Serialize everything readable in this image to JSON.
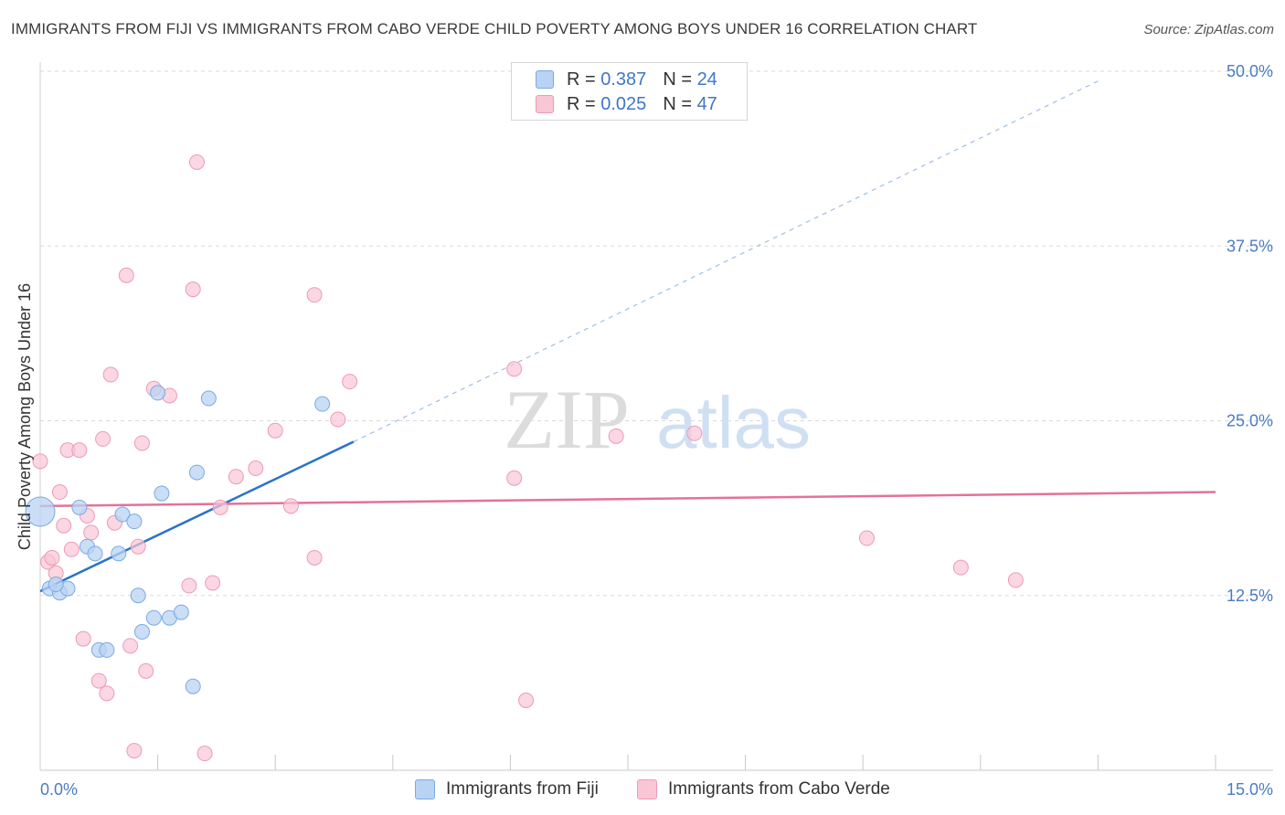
{
  "title": "IMMIGRANTS FROM FIJI VS IMMIGRANTS FROM CABO VERDE CHILD POVERTY AMONG BOYS UNDER 16 CORRELATION CHART",
  "source": "Source: ZipAtlas.com",
  "watermark": {
    "zip": "ZIP",
    "atlas": "atlas"
  },
  "colors": {
    "fiji_fill": "#b8d3f3",
    "fiji_stroke": "#7aaae4",
    "fiji_line": "#2b72c9",
    "cabo_fill": "#f8c6d5",
    "cabo_stroke": "#ee9ab4",
    "cabo_line": "#e4719a",
    "grid": "#d9d9d9",
    "tick_text": "#4a7cc4"
  },
  "legend": {
    "rows": [
      {
        "r_label": "R =",
        "r_value": "0.387",
        "n_label": "N =",
        "n_value": "24"
      },
      {
        "r_label": "R =",
        "r_value": "0.025",
        "n_label": "N =",
        "n_value": "47"
      }
    ]
  },
  "chart_data": {
    "type": "scatter",
    "title": "IMMIGRANTS FROM FIJI VS IMMIGRANTS FROM CABO VERDE CHILD POVERTY AMONG BOYS UNDER 16 CORRELATION CHART",
    "xlabel": "",
    "ylabel": "Child Poverty Among Boys Under 16",
    "xlim": [
      0,
      15
    ],
    "ylim": [
      0,
      50
    ],
    "x_tick_labels": [
      "0.0%",
      "15.0%"
    ],
    "y_ticks": [
      12.5,
      25.0,
      37.5,
      50.0
    ],
    "y_tick_labels": [
      "12.5%",
      "25.0%",
      "37.5%",
      "50.0%"
    ],
    "grid": true,
    "legend_position": "top-center",
    "series": [
      {
        "name": "Immigrants from Fiji",
        "r": 0.387,
        "n": 24,
        "trend": {
          "x0": 0.0,
          "y0": 12.8,
          "x1": 4.0,
          "y1": 23.5,
          "solid_until": 4.0,
          "dash_to_x": 13.5,
          "dash_to_y": 49.3
        },
        "points": [
          [
            0.0,
            18.5
          ],
          [
            0.12,
            13.0
          ],
          [
            0.25,
            12.7
          ],
          [
            0.35,
            13.0
          ],
          [
            0.2,
            13.3
          ],
          [
            0.5,
            18.8
          ],
          [
            0.6,
            16.0
          ],
          [
            0.7,
            15.5
          ],
          [
            0.75,
            8.6
          ],
          [
            0.85,
            8.6
          ],
          [
            1.0,
            15.5
          ],
          [
            1.05,
            18.3
          ],
          [
            1.2,
            17.8
          ],
          [
            1.25,
            12.5
          ],
          [
            1.3,
            9.9
          ],
          [
            1.45,
            10.9
          ],
          [
            1.5,
            27.0
          ],
          [
            1.55,
            19.8
          ],
          [
            1.65,
            10.9
          ],
          [
            1.8,
            11.3
          ],
          [
            1.95,
            6.0
          ],
          [
            2.0,
            21.3
          ],
          [
            2.15,
            26.6
          ],
          [
            3.6,
            26.2
          ]
        ]
      },
      {
        "name": "Immigrants from Cabo Verde",
        "r": 0.025,
        "n": 47,
        "trend": {
          "x0": 0.0,
          "y0": 18.9,
          "x1": 15.0,
          "y1": 19.9
        },
        "points": [
          [
            0.0,
            22.1
          ],
          [
            0.1,
            14.9
          ],
          [
            0.15,
            15.2
          ],
          [
            0.2,
            14.1
          ],
          [
            0.25,
            19.9
          ],
          [
            0.3,
            17.5
          ],
          [
            0.35,
            22.9
          ],
          [
            0.4,
            15.8
          ],
          [
            0.5,
            22.9
          ],
          [
            0.55,
            9.4
          ],
          [
            0.6,
            18.2
          ],
          [
            0.65,
            17.0
          ],
          [
            0.75,
            6.4
          ],
          [
            0.8,
            23.7
          ],
          [
            0.85,
            5.5
          ],
          [
            0.9,
            28.3
          ],
          [
            0.95,
            17.7
          ],
          [
            1.1,
            35.4
          ],
          [
            1.15,
            8.9
          ],
          [
            1.2,
            1.4
          ],
          [
            1.25,
            16.0
          ],
          [
            1.3,
            23.4
          ],
          [
            1.35,
            7.1
          ],
          [
            1.45,
            27.3
          ],
          [
            1.65,
            26.8
          ],
          [
            1.9,
            13.2
          ],
          [
            1.95,
            34.4
          ],
          [
            2.0,
            43.5
          ],
          [
            2.1,
            1.2
          ],
          [
            2.2,
            13.4
          ],
          [
            2.3,
            18.8
          ],
          [
            2.5,
            21.0
          ],
          [
            2.75,
            21.6
          ],
          [
            3.0,
            24.3
          ],
          [
            3.2,
            18.9
          ],
          [
            3.5,
            34.0
          ],
          [
            3.5,
            15.2
          ],
          [
            3.8,
            25.1
          ],
          [
            3.95,
            27.8
          ],
          [
            6.05,
            28.7
          ],
          [
            6.05,
            20.9
          ],
          [
            6.2,
            5.0
          ],
          [
            7.35,
            23.9
          ],
          [
            8.35,
            24.1
          ],
          [
            10.55,
            16.6
          ],
          [
            11.75,
            14.5
          ],
          [
            12.45,
            13.6
          ]
        ]
      }
    ]
  }
}
